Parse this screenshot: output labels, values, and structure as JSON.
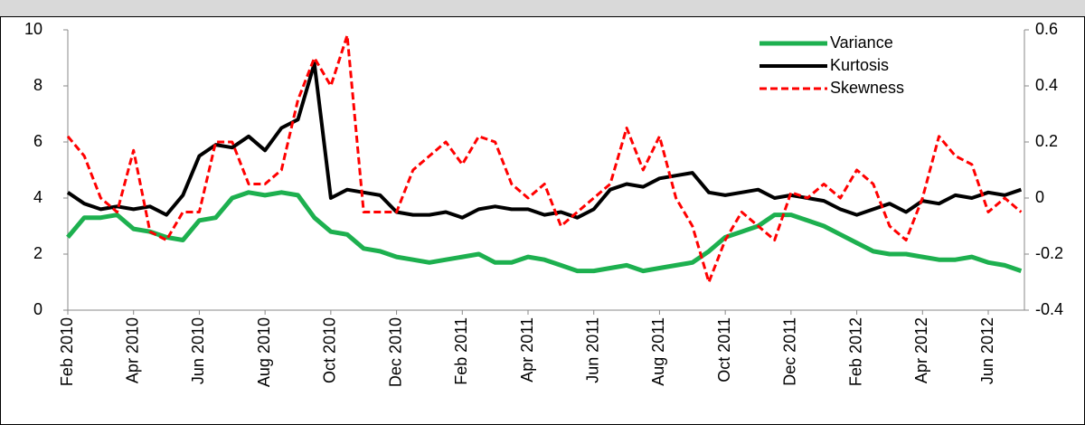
{
  "chart_data": {
    "type": "line",
    "xlim": [
      0,
      29.1
    ],
    "xticks": [
      {
        "value": 0,
        "label": "Feb 2010"
      },
      {
        "value": 2,
        "label": "Apr 2010"
      },
      {
        "value": 4,
        "label": "Jun 2010"
      },
      {
        "value": 6,
        "label": "Aug 2010"
      },
      {
        "value": 8,
        "label": "Oct 2010"
      },
      {
        "value": 10,
        "label": "Dec 2010"
      },
      {
        "value": 12,
        "label": "Feb 2011"
      },
      {
        "value": 14,
        "label": "Apr 2011"
      },
      {
        "value": 16,
        "label": "Jun 2011"
      },
      {
        "value": 18,
        "label": "Aug 2011"
      },
      {
        "value": 20,
        "label": "Oct 2011"
      },
      {
        "value": 22,
        "label": "Dec 2011"
      },
      {
        "value": 24,
        "label": "Feb 2012"
      },
      {
        "value": 26,
        "label": "Apr 2012"
      },
      {
        "value": 28,
        "label": "Jun 2012"
      }
    ],
    "ylim": [
      0,
      10
    ],
    "yticks": [
      0,
      2,
      4,
      6,
      8,
      10
    ],
    "y2lim": [
      -0.4,
      0.6
    ],
    "y2ticks": [
      -0.4,
      -0.2,
      0,
      0.2,
      0.4,
      0.6
    ],
    "legend": "top-right",
    "x": [
      0,
      0.5,
      1,
      1.5,
      2,
      2.5,
      3,
      3.5,
      4,
      4.5,
      5,
      5.5,
      6,
      6.5,
      7,
      7.5,
      8,
      8.5,
      9,
      9.5,
      10,
      10.5,
      11,
      11.5,
      12,
      12.5,
      13,
      13.5,
      14,
      14.5,
      15,
      15.5,
      16,
      16.5,
      17,
      17.5,
      18,
      18.5,
      19,
      19.5,
      20,
      20.5,
      21,
      21.5,
      22,
      22.5,
      23,
      23.5,
      24,
      24.5,
      25,
      25.5,
      26,
      26.5,
      27,
      27.5,
      28,
      28.5,
      29
    ],
    "series": [
      {
        "name": "Variance",
        "color": "#1db04f",
        "width": 5,
        "dash": "none",
        "values": [
          2.6,
          3.3,
          3.3,
          3.4,
          2.9,
          2.8,
          2.6,
          2.5,
          3.2,
          3.3,
          4.0,
          4.2,
          4.1,
          4.2,
          4.1,
          3.3,
          2.8,
          2.7,
          2.2,
          2.1,
          1.9,
          1.8,
          1.7,
          1.8,
          1.9,
          2.0,
          1.7,
          1.7,
          1.9,
          1.8,
          1.6,
          1.4,
          1.4,
          1.5,
          1.6,
          1.4,
          1.5,
          1.6,
          1.7,
          2.1,
          2.6,
          2.8,
          3.0,
          3.4,
          3.4,
          3.2,
          3.0,
          2.7,
          2.4,
          2.1,
          2.0,
          2.0,
          1.9,
          1.8,
          1.8,
          1.9,
          1.7,
          1.6,
          1.4
        ]
      },
      {
        "name": "Kurtosis",
        "color": "#000000",
        "width": 4,
        "dash": "none",
        "values": [
          4.2,
          3.8,
          3.6,
          3.7,
          3.6,
          3.7,
          3.4,
          4.1,
          5.5,
          5.9,
          5.8,
          6.2,
          5.7,
          6.5,
          6.8,
          8.8,
          4.0,
          4.3,
          4.2,
          4.1,
          3.5,
          3.4,
          3.4,
          3.5,
          3.3,
          3.6,
          3.7,
          3.6,
          3.6,
          3.4,
          3.5,
          3.3,
          3.6,
          4.3,
          4.5,
          4.4,
          4.7,
          4.8,
          4.9,
          4.2,
          4.1,
          4.2,
          4.3,
          4.0,
          4.1,
          4.0,
          3.9,
          3.6,
          3.4,
          3.6,
          3.8,
          3.5,
          3.9,
          3.8,
          4.1,
          4.0,
          4.2,
          4.1,
          4.3
        ]
      },
      {
        "name": "Skewness",
        "color": "#ff0000",
        "width": 3,
        "dash": "8,4",
        "axis": "y2",
        "values": [
          0.22,
          0.15,
          0.0,
          -0.05,
          0.17,
          -0.12,
          -0.15,
          -0.05,
          -0.05,
          0.2,
          0.2,
          0.05,
          0.05,
          0.1,
          0.35,
          0.5,
          0.4,
          0.58,
          -0.05,
          -0.05,
          -0.05,
          0.1,
          0.15,
          0.2,
          0.12,
          0.22,
          0.2,
          0.05,
          0.0,
          0.05,
          -0.1,
          -0.05,
          0.0,
          0.05,
          0.25,
          0.1,
          0.22,
          0.0,
          -0.1,
          -0.3,
          -0.15,
          -0.05,
          -0.1,
          -0.15,
          0.02,
          0.0,
          0.05,
          0.0,
          0.1,
          0.05,
          -0.1,
          -0.15,
          0.0,
          0.22,
          0.15,
          0.12,
          -0.05,
          0.0,
          -0.05
        ]
      }
    ]
  }
}
